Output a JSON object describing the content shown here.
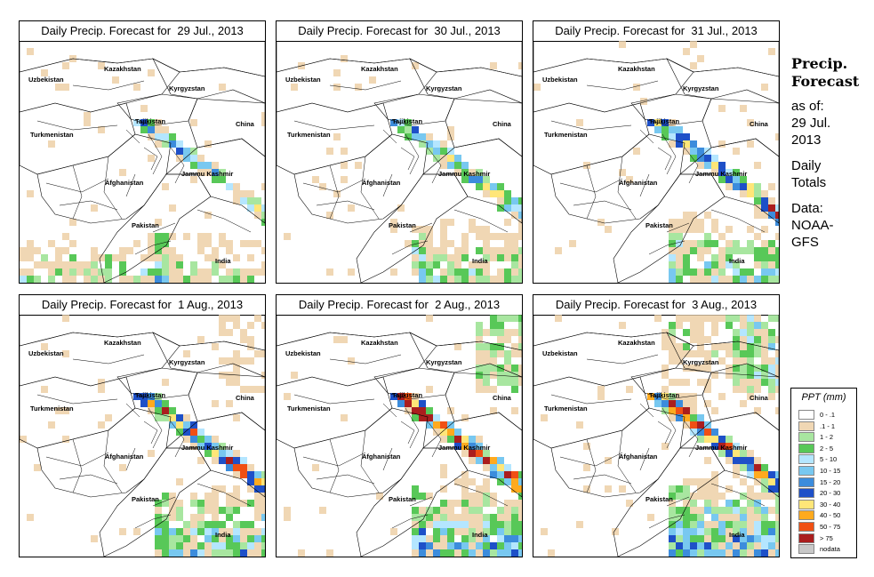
{
  "panels": [
    {
      "title": "Daily Precip. Forecast for  29 Jul., 2013"
    },
    {
      "title": "Daily Precip. Forecast for  30 Jul., 2013"
    },
    {
      "title": "Daily Precip. Forecast for  31 Jul., 2013"
    },
    {
      "title": "Daily Precip. Forecast for  1 Aug., 2013"
    },
    {
      "title": "Daily Precip. Forecast for  2 Aug., 2013"
    },
    {
      "title": "Daily Precip. Forecast for  3 Aug., 2013"
    }
  ],
  "map_labels": {
    "uzbekistan": "Uzbekistan",
    "kazakhstan": "Kazakhstan",
    "kyrgyzstan": "Kyrgyzstan",
    "tajikistan": "Tajikistan",
    "china": "China",
    "turkmenistan": "Turkmenistan",
    "jammu_kashmir": "Jammu Kashmir",
    "afghanistan": "Afghanistan",
    "pakistan": "Pakistan",
    "india": "India"
  },
  "sidebar": {
    "title_line1": "Precip.",
    "title_line2": "Forecast",
    "asof": "as of:",
    "date_line1": "29 Jul.",
    "date_line2": "2013",
    "daily": "Daily",
    "totals": "Totals",
    "data_label": "Data:",
    "source_line1": "NOAA-",
    "source_line2": "GFS"
  },
  "legend": {
    "title": "PPT (mm)",
    "classes": [
      {
        "label": "0 - .1",
        "color": "#ffffff"
      },
      {
        "label": ".1 - 1",
        "color": "#f0d7b4"
      },
      {
        "label": "1 - 2",
        "color": "#a8e6a0"
      },
      {
        "label": "2 - 5",
        "color": "#58c858"
      },
      {
        "label": "5 - 10",
        "color": "#b4e6ff"
      },
      {
        "label": "10 - 15",
        "color": "#78c8f0"
      },
      {
        "label": "15 - 20",
        "color": "#3c8cdc"
      },
      {
        "label": "20 - 30",
        "color": "#1e50c8"
      },
      {
        "label": "30 - 40",
        "color": "#ffe678"
      },
      {
        "label": "40 - 50",
        "color": "#ffaa1e"
      },
      {
        "label": "50 - 75",
        "color": "#f05014"
      },
      {
        "label": "> 75",
        "color": "#aa1e1e"
      },
      {
        "label": "nodata",
        "color": "#c8c8c8"
      }
    ]
  }
}
